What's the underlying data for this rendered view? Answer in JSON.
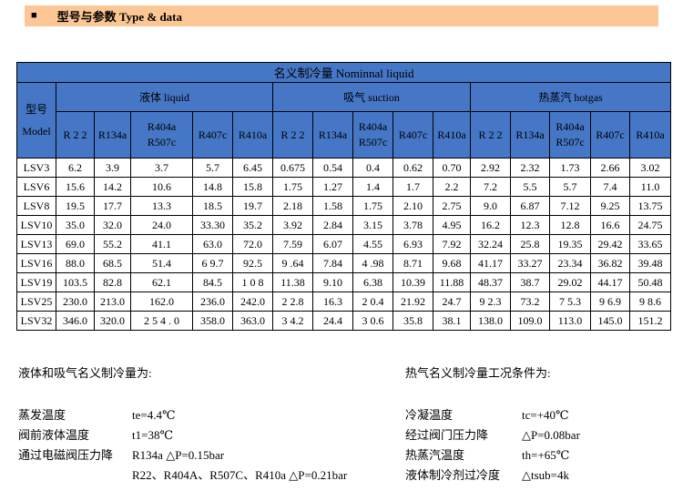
{
  "title_bar": {
    "bullet": "■",
    "text": "型号与参数 Type & data"
  },
  "colors": {
    "bar_bg": "#FCC795",
    "table_header_bg": "#4577C6",
    "border": "#000000"
  },
  "chart_data": {
    "type": "table",
    "title": "名义制冷量 Nominnal liquid",
    "row_header": "型号 Model",
    "column_groups": [
      "液体 liquid",
      "吸气 suction",
      "热蒸汽 hotgas"
    ],
    "columns_per_group": [
      "R 2 2",
      "R134a",
      "R404a R507c",
      "R407c",
      "R410a"
    ],
    "rows": [
      "LSV3",
      "LSV6",
      "LSV8",
      "LSV10",
      "LSV13",
      "LSV16",
      "LSV19",
      "LSV25",
      "LSV32"
    ]
  },
  "table": {
    "title": "名义制冷量 Nominnal liquid",
    "model_header": {
      "line1": "型号",
      "line2": "Model"
    },
    "groups": [
      {
        "label": "液体 liquid",
        "cols": [
          "R 2 2",
          "R134a",
          "R404a\nR507c",
          "R407c",
          "R410a"
        ]
      },
      {
        "label": "吸气 suction",
        "cols": [
          "R 2 2",
          "R134a",
          "R404a\nR507c",
          "R407c",
          "R410a"
        ]
      },
      {
        "label": "热蒸汽 hotgas",
        "cols": [
          "R 2 2",
          "R134a",
          "R404a\nR507c",
          "R407c",
          "R410a"
        ]
      }
    ],
    "rows": [
      {
        "model": "LSV3",
        "values": [
          "6.2",
          "3.9",
          "3.7",
          "5.7",
          "6.45",
          "0.675",
          "0.54",
          "0.4",
          "0.62",
          "0.70",
          "2.92",
          "2.32",
          "1.73",
          "2.66",
          "3.02"
        ]
      },
      {
        "model": "LSV6",
        "values": [
          "15.6",
          "14.2",
          "10.6",
          "14.8",
          "15.8",
          "1.75",
          "1.27",
          "1.4",
          "1.7",
          "2.2",
          "7.2",
          "5.5",
          "5.7",
          "7.4",
          "11.0"
        ]
      },
      {
        "model": "LSV8",
        "values": [
          "19.5",
          "17.7",
          "13.3",
          "18.5",
          "19.7",
          "2.18",
          "1.58",
          "1.75",
          "2.10",
          "2.75",
          "9.0",
          "6.87",
          "7.12",
          "9.25",
          "13.75"
        ]
      },
      {
        "model": "LSV10",
        "values": [
          "35.0",
          "32.0",
          "24.0",
          "33.30",
          "35.2",
          "3.92",
          "2.84",
          "3.15",
          "3.78",
          "4.95",
          "16.2",
          "12.3",
          "12.8",
          "16.6",
          "24.75"
        ]
      },
      {
        "model": "LSV13",
        "values": [
          "69.0",
          "55.2",
          "41.1",
          "63.0",
          "72.0",
          "7.59",
          "6.07",
          "4.55",
          "6.93",
          "7.92",
          "32.24",
          "25.8",
          "19.35",
          "29.42",
          "33.65"
        ]
      },
      {
        "model": "LSV16",
        "values": [
          "88.0",
          "68.5",
          "51.4",
          "6 9.7",
          "92.5",
          "9 .64",
          "7.84",
          "4 .98",
          "8.71",
          "9.68",
          "41.17",
          "33.27",
          "23.34",
          "36.82",
          "39.48"
        ]
      },
      {
        "model": "LSV19",
        "values": [
          "103.5",
          "82.8",
          "62.1",
          "84.5",
          "1 0 8",
          "11.38",
          "9.10",
          "6.38",
          "10.39",
          "11.88",
          "48.37",
          "38.7",
          "29.02",
          "44.17",
          "50.48"
        ]
      },
      {
        "model": "LSV25",
        "values": [
          "230.0",
          "213.0",
          "162.0",
          "236.0",
          "242.0",
          "2 2.8",
          "16.3",
          "2 0.4",
          "21.92",
          "24.7",
          "9 2.3",
          "73.2",
          "7 5.3",
          "9 6.9",
          "9 8.6"
        ]
      },
      {
        "model": "LSV32",
        "values": [
          "346.0",
          "320.0",
          "2 5 4 . 0",
          "358.0",
          "363.0",
          "3 4.2",
          "24.4",
          "3 0.6",
          "35.8",
          "38.1",
          "138.0",
          "109.0",
          "113.0",
          "145.0",
          "151.2"
        ]
      }
    ]
  },
  "notes_left": {
    "title": "液体和吸气名义制冷量为:",
    "rows": [
      {
        "label": "蒸发温度",
        "value": "te=4.4℃"
      },
      {
        "label": "阀前液体温度",
        "value": "t1=38℃"
      },
      {
        "label": "通过电磁阀压力降",
        "value": "R134a  △P=0.15bar"
      },
      {
        "label": "",
        "value": "R22、R404A、R507C、R410a  △P=0.21bar"
      }
    ]
  },
  "notes_right": {
    "title": "热气名义制冷量工况条件为:",
    "rows": [
      {
        "label": "冷凝温度",
        "value": "tc=+40℃"
      },
      {
        "label": "经过阀门压力降",
        "value": "△P=0.08bar"
      },
      {
        "label": "热蒸汽温度",
        "value": "th=+65℃"
      },
      {
        "label": "液体制冷剂过冷度",
        "value": "△tsub=4k"
      }
    ]
  }
}
